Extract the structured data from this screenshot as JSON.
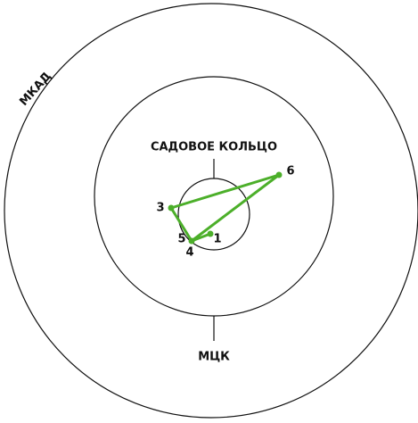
{
  "rings": {
    "outer": "МКАД",
    "middle": "МЦК",
    "inner": "САДОВОЕ КОЛЬЦО"
  },
  "points": [
    "1",
    "3",
    "4",
    "5",
    "6"
  ]
}
